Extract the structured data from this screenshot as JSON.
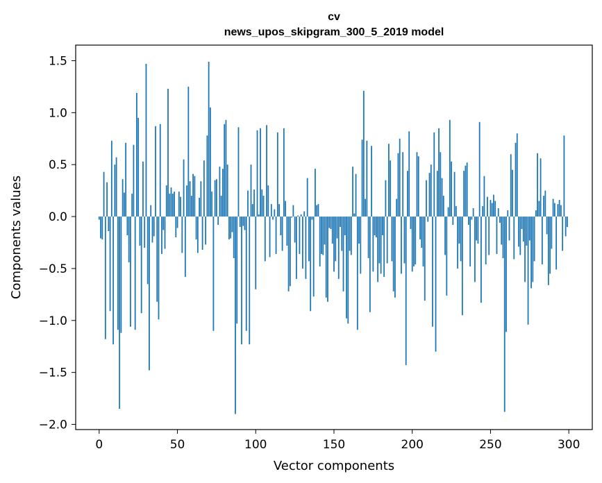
{
  "colors": {
    "bar": "#1f77b4",
    "axis": "#000000",
    "background": "#ffffff"
  },
  "chart_data": {
    "type": "bar",
    "title": "cv",
    "subtitle": "news_upos_skipgram_300_5_2019 model",
    "xlabel": "Vector components",
    "ylabel": "Components values",
    "xlim": [
      -15,
      315
    ],
    "ylim": [
      -2.05,
      1.65
    ],
    "xticks": [
      0,
      50,
      100,
      150,
      200,
      250,
      300
    ],
    "xtick_labels": [
      "0",
      "50",
      "100",
      "150",
      "200",
      "250",
      "300"
    ],
    "yticks": [
      1.5,
      1.0,
      0.5,
      0.0,
      -0.5,
      -1.0,
      -1.5,
      -2.0
    ],
    "ytick_labels": [
      "1.5",
      "1.0",
      "0.5",
      "0.0",
      "−0.5",
      "−1.0",
      "−1.5",
      "−2.0"
    ],
    "grid": false,
    "legend": "none",
    "x": [
      0,
      1,
      2,
      3,
      4,
      5,
      6,
      7,
      8,
      9,
      10,
      11,
      12,
      13,
      14,
      15,
      16,
      17,
      18,
      19,
      20,
      21,
      22,
      23,
      24,
      25,
      26,
      27,
      28,
      29,
      30,
      31,
      32,
      33,
      34,
      35,
      36,
      37,
      38,
      39,
      40,
      41,
      42,
      43,
      44,
      45,
      46,
      47,
      48,
      49,
      50,
      51,
      52,
      53,
      54,
      55,
      56,
      57,
      58,
      59,
      60,
      61,
      62,
      63,
      64,
      65,
      66,
      67,
      68,
      69,
      70,
      71,
      72,
      73,
      74,
      75,
      76,
      77,
      78,
      79,
      80,
      81,
      82,
      83,
      84,
      85,
      86,
      87,
      88,
      89,
      90,
      91,
      92,
      93,
      94,
      95,
      96,
      97,
      98,
      99,
      100,
      101,
      102,
      103,
      104,
      105,
      106,
      107,
      108,
      109,
      110,
      111,
      112,
      113,
      114,
      115,
      116,
      117,
      118,
      119,
      120,
      121,
      122,
      123,
      124,
      125,
      126,
      127,
      128,
      129,
      130,
      131,
      132,
      133,
      134,
      135,
      136,
      137,
      138,
      139,
      140,
      141,
      142,
      143,
      144,
      145,
      146,
      147,
      148,
      149,
      150,
      151,
      152,
      153,
      154,
      155,
      156,
      157,
      158,
      159,
      160,
      161,
      162,
      163,
      164,
      165,
      166,
      167,
      168,
      169,
      170,
      171,
      172,
      173,
      174,
      175,
      176,
      177,
      178,
      179,
      180,
      181,
      182,
      183,
      184,
      185,
      186,
      187,
      188,
      189,
      190,
      191,
      192,
      193,
      194,
      195,
      196,
      197,
      198,
      199,
      200,
      201,
      202,
      203,
      204,
      205,
      206,
      207,
      208,
      209,
      210,
      211,
      212,
      213,
      214,
      215,
      216,
      217,
      218,
      219,
      220,
      221,
      222,
      223,
      224,
      225,
      226,
      227,
      228,
      229,
      230,
      231,
      232,
      233,
      234,
      235,
      236,
      237,
      238,
      239,
      240,
      241,
      242,
      243,
      244,
      245,
      246,
      247,
      248,
      249,
      250,
      251,
      252,
      253,
      254,
      255,
      256,
      257,
      258,
      259,
      260,
      261,
      262,
      263,
      264,
      265,
      266,
      267,
      268,
      269,
      270,
      271,
      272,
      273,
      274,
      275,
      276,
      277,
      278,
      279,
      280,
      281,
      282,
      283,
      284,
      285,
      286,
      287,
      288,
      289,
      290,
      291,
      292,
      293,
      294,
      295,
      296,
      297,
      298,
      299
    ],
    "values": [
      -0.03,
      -0.21,
      -0.22,
      0.43,
      -1.18,
      0.33,
      -0.14,
      -0.91,
      0.73,
      -1.23,
      0.5,
      0.57,
      -1.09,
      -1.85,
      -1.12,
      0.36,
      0.23,
      0.71,
      -0.18,
      -0.44,
      -1.06,
      0.22,
      0.69,
      -1.09,
      1.19,
      0.95,
      -0.28,
      -0.93,
      0.53,
      -0.3,
      1.47,
      -0.65,
      -1.48,
      0.11,
      -0.25,
      -0.19,
      0.87,
      -0.82,
      -0.99,
      0.89,
      -0.36,
      -0.13,
      -0.31,
      0.3,
      1.23,
      0.22,
      0.28,
      0.22,
      0.24,
      -0.2,
      -0.11,
      0.24,
      0.19,
      -0.35,
      0.55,
      -0.58,
      0.3,
      1.25,
      0.34,
      0.2,
      0.41,
      0.39,
      -0.22,
      -0.35,
      0.18,
      0.34,
      -0.32,
      0.54,
      -0.27,
      0.78,
      1.49,
      1.05,
      0.24,
      -1.1,
      0.35,
      0.36,
      -0.08,
      0.48,
      0.2,
      0.46,
      0.89,
      0.93,
      0.5,
      -0.22,
      -0.21,
      -0.15,
      -0.4,
      -1.9,
      -1.03,
      0.86,
      -0.1,
      -1.23,
      -0.09,
      -0.13,
      -1.1,
      0.25,
      -1.23,
      0.5,
      0.12,
      0.26,
      -0.7,
      0.83,
      0.02,
      0.85,
      0.26,
      0.2,
      -0.43,
      0.88,
      0.3,
      -0.39,
      0.12,
      -0.03,
      0.07,
      -0.36,
      0.81,
      0.12,
      -0.18,
      -0.33,
      0.85,
      0.15,
      -0.28,
      -0.72,
      -0.67,
      -0.01,
      0.11,
      -0.25,
      -0.6,
      0.01,
      -0.36,
      0.02,
      -0.5,
      0.05,
      -0.6,
      0.37,
      -0.43,
      -0.91,
      -0.03,
      -0.77,
      0.46,
      0.11,
      0.12,
      -0.48,
      -0.36,
      -0.37,
      -0.27,
      -0.78,
      -0.82,
      -0.11,
      -0.12,
      -0.26,
      -0.53,
      -0.43,
      -0.21,
      -0.6,
      -0.1,
      -0.33,
      -0.72,
      -0.18,
      -0.98,
      -1.03,
      -0.33,
      -0.37,
      0.48,
      0.03,
      0.41,
      -1.09,
      -0.26,
      -0.55,
      0.74,
      1.21,
      0.17,
      0.73,
      -0.4,
      -0.92,
      0.68,
      -0.53,
      -0.18,
      -0.2,
      -0.63,
      -0.45,
      -0.55,
      -0.18,
      -0.58,
      0.35,
      -0.45,
      0.7,
      0.54,
      -0.43,
      -0.72,
      -0.78,
      0.17,
      0.61,
      0.75,
      -0.55,
      0.62,
      -0.45,
      -1.43,
      0.44,
      0.82,
      -0.12,
      -0.53,
      -0.48,
      -0.46,
      0.62,
      0.58,
      -0.22,
      -0.3,
      -0.48,
      -0.81,
      0.35,
      -0.05,
      0.42,
      0.5,
      -1.06,
      0.81,
      -1.3,
      0.44,
      0.85,
      0.62,
      0.37,
      0.2,
      -0.37,
      -0.76,
      0.09,
      0.93,
      0.53,
      -0.08,
      0.43,
      0.1,
      -0.5,
      -0.26,
      -0.43,
      -0.95,
      0.44,
      0.49,
      0.52,
      -0.08,
      -0.48,
      -0.03,
      0.08,
      -0.63,
      -0.23,
      -0.26,
      0.91,
      -0.83,
      0.1,
      0.39,
      -0.46,
      0.19,
      -0.37,
      0.16,
      0.13,
      0.21,
      0.15,
      -0.36,
      0.08,
      -0.06,
      -0.27,
      -0.4,
      -1.88,
      -1.11,
      0.06,
      -0.23,
      0.6,
      0.45,
      -0.41,
      0.71,
      0.8,
      -0.29,
      -0.37,
      -0.12,
      -0.24,
      -0.63,
      -0.28,
      -1.04,
      -0.23,
      -0.69,
      -0.63,
      -0.43,
      0.06,
      0.61,
      0.15,
      0.56,
      -0.46,
      0.2,
      0.25,
      -0.17,
      -0.66,
      -0.55,
      -0.31,
      0.17,
      0.13,
      -0.51,
      0.12,
      0.16,
      0.11,
      -0.33,
      0.78,
      -0.19,
      -0.1
    ]
  }
}
